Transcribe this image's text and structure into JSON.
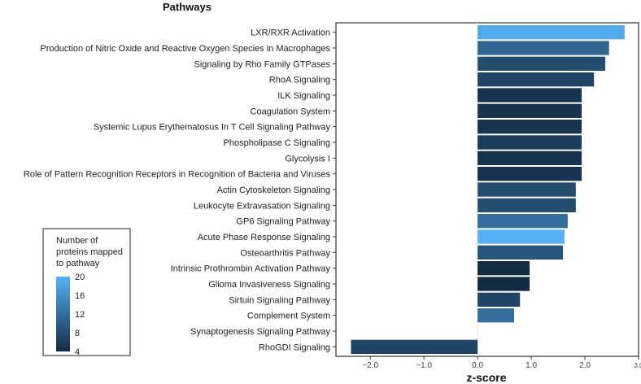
{
  "chart_data": {
    "type": "bar",
    "orientation": "horizontal",
    "title": "Pathways",
    "xlabel": "z-score",
    "ylabel": "Pathways",
    "xlim": [
      -2.64,
      3.0
    ],
    "xticks": [
      -2.0,
      -1.0,
      0.0,
      1.0,
      2.0,
      3.0
    ],
    "xtick_labels": [
      "−2.0",
      "−1.0",
      "0.0",
      "1.0",
      "2.0",
      "3.0"
    ],
    "categories": [
      "LXR/RXR Activation",
      "Production of Nitric Oxide and Reactive Oxygen Species in Macrophages",
      "Signaling by Rho Family GTPases",
      "RhoA Signaling",
      "ILK Signaling",
      "Coagulation System",
      "Systemic Lupus Erythematosus In T Cell Signaling Pathway",
      "Phospholipase C Signaling",
      "Glycolysis I",
      "Role of Pattern Recognition Receptors in Recognition of Bacteria and Viruses",
      "Actin Cytoskeleton Signaling",
      "Leukocyte Extravasation Signaling",
      "GP6 Signaling Pathway",
      "Acute Phase Response Signaling",
      "Osteoarthritis Pathway",
      "Intrinsic Prothrombin Activation Pathway",
      "Glioma Invasiveness Signaling",
      "Sirtuin Signaling Pathway",
      "Complement System",
      "Synaptogenesis Signaling Pathway",
      "RhoGDI Signaling"
    ],
    "values": [
      2.74,
      2.45,
      2.38,
      2.17,
      1.94,
      1.94,
      1.94,
      1.94,
      1.94,
      1.94,
      1.83,
      1.83,
      1.68,
      1.62,
      1.59,
      0.97,
      0.97,
      0.79,
      0.68,
      0.0,
      -2.36
    ],
    "color_values": [
      19,
      11,
      8,
      7,
      5,
      5,
      5,
      6,
      5,
      5,
      8,
      8,
      12,
      20,
      9,
      4,
      4,
      7,
      12,
      6,
      7
    ],
    "legend": {
      "title_lines": [
        "Number of",
        "proteins mapped",
        "to pathway"
      ],
      "ticks": [
        20,
        16,
        12,
        8,
        4
      ],
      "range": [
        4,
        20
      ],
      "low_color": "#132B43",
      "high_color": "#56B1F7",
      "placement": "bottom-left"
    }
  }
}
